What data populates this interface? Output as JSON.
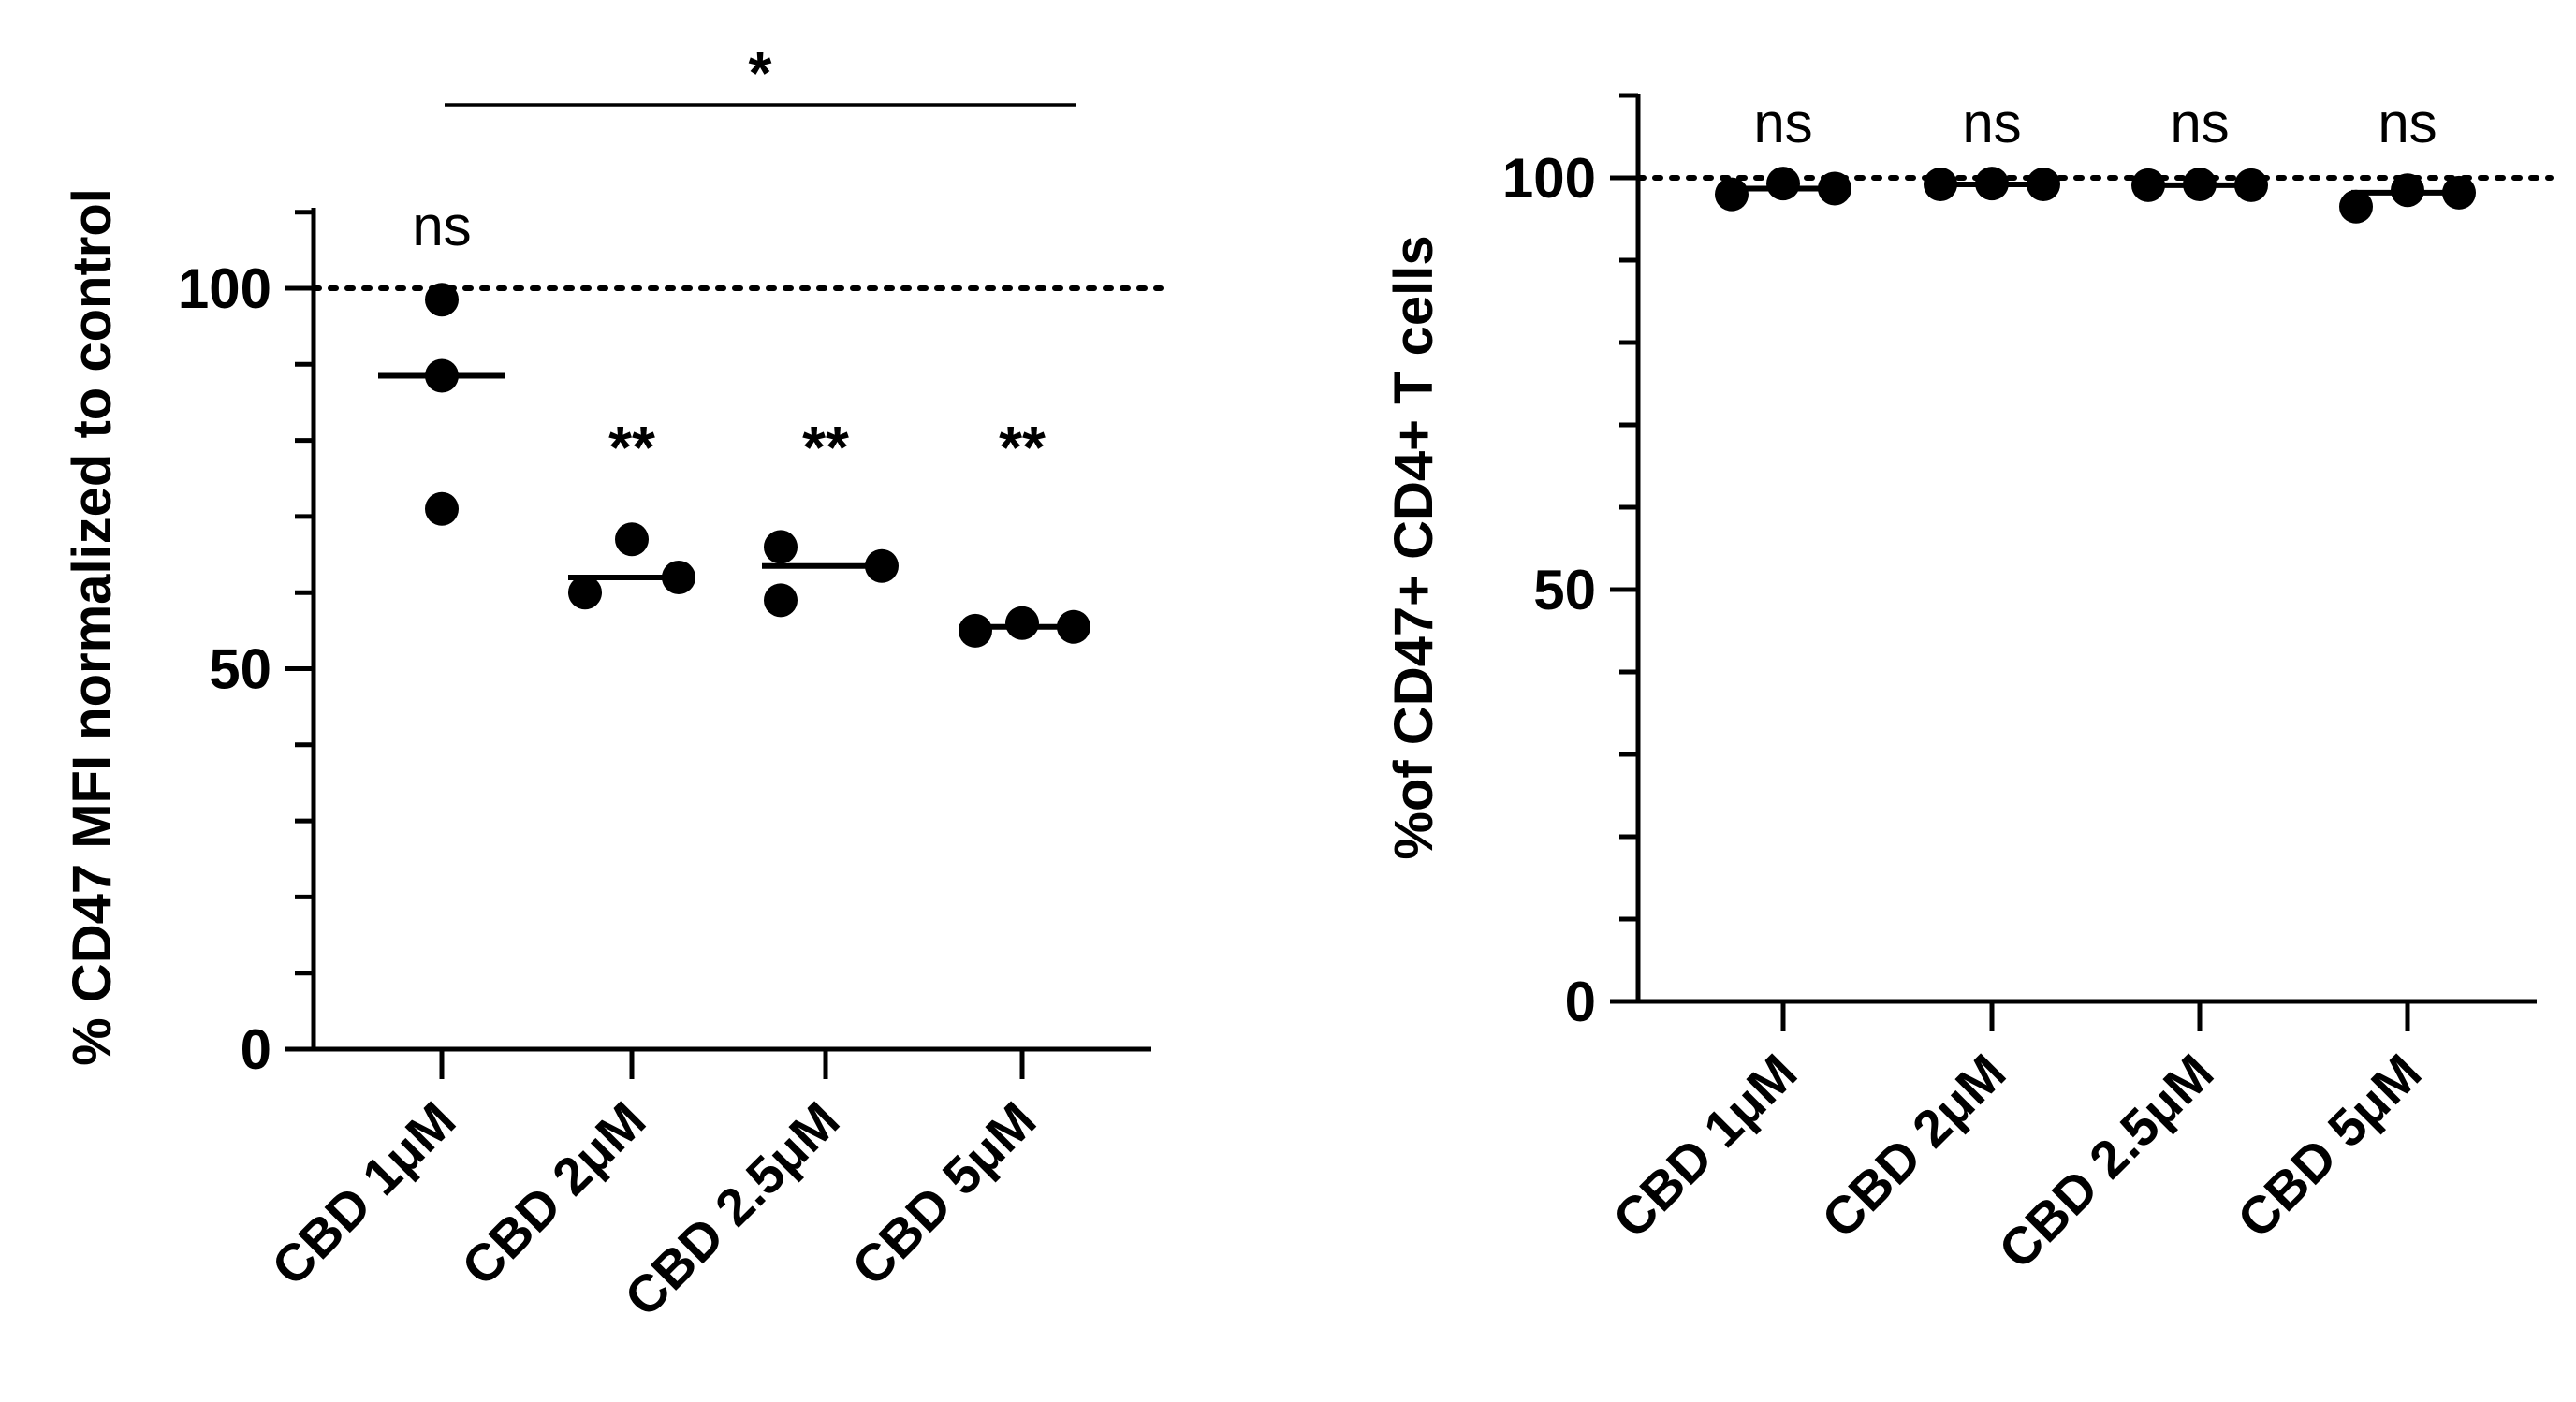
{
  "chart_data": [
    {
      "type": "scatter",
      "title": "",
      "xlabel": "",
      "ylabel": "% CD47 MFI normalized to control",
      "ylim": [
        0,
        110
      ],
      "yticks": [
        0,
        50,
        100
      ],
      "reference_line": 100,
      "categories": [
        "CBD 1μM",
        "CBD 2μM",
        "CBD 2.5μM",
        "CBD 5μM"
      ],
      "series": [
        {
          "name": "CBD 1μM",
          "values": [
            98.5,
            88.5,
            71.0
          ],
          "median": 88.5,
          "median_color": "#000000"
        },
        {
          "name": "CBD 2μM",
          "values": [
            60.0,
            67.0,
            62.0
          ],
          "median": 62.0,
          "median_color": "#000000"
        },
        {
          "name": "CBD 2.5μM",
          "values": [
            66.0,
            59.0,
            63.5
          ],
          "median": 63.5,
          "median_color": "#000000"
        },
        {
          "name": "CBD 5μM",
          "values": [
            55.0,
            56.0,
            55.5
          ],
          "median": 55.5,
          "median_color": "#000000"
        }
      ],
      "significance": [
        "ns",
        "**",
        "**",
        "**"
      ],
      "bracket": {
        "from": "CBD 1μM",
        "to": "CBD 5μM",
        "label": "*"
      }
    },
    {
      "type": "scatter",
      "title": "",
      "xlabel": "",
      "ylabel": "%of CD47+ CD4+ T cells",
      "ylim": [
        0,
        110
      ],
      "yticks": [
        0,
        50,
        100
      ],
      "reference_line": 100,
      "categories": [
        "CBD 1μM",
        "CBD 2μM",
        "CBD 2.5μM",
        "CBD 5μM"
      ],
      "series": [
        {
          "name": "CBD 1μM",
          "values": [
            98.0,
            99.3,
            98.7
          ],
          "median": 98.7,
          "median_color": "#2ec4a6"
        },
        {
          "name": "CBD 2μM",
          "values": [
            99.2,
            99.3,
            99.2
          ],
          "median": 99.2,
          "median_color": "#2ec4a6"
        },
        {
          "name": "CBD 2.5μM",
          "values": [
            99.1,
            99.2,
            99.1
          ],
          "median": 99.1,
          "median_color": "#3cbf4a"
        },
        {
          "name": "CBD 5μM",
          "values": [
            96.5,
            98.5,
            98.2
          ],
          "median": 98.2,
          "median_color": "#e0457a"
        }
      ],
      "significance": [
        "ns",
        "ns",
        "ns",
        "ns"
      ]
    }
  ]
}
